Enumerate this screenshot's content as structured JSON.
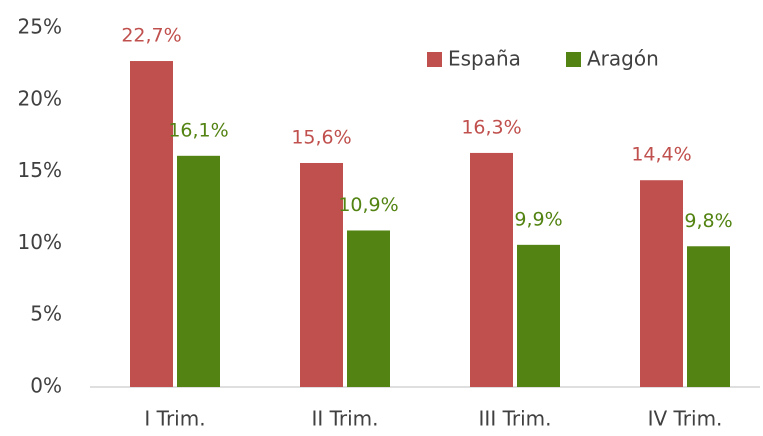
{
  "chart_data": {
    "type": "bar",
    "categories": [
      "I Trim.",
      "II Trim.",
      "III Trim.",
      "IV Trim."
    ],
    "series": [
      {
        "name": "España",
        "color": "#c0504d",
        "values": [
          22.7,
          15.6,
          16.3,
          14.4
        ],
        "value_labels": [
          "22,7%",
          "15,6%",
          "16,3%",
          "14,4%"
        ]
      },
      {
        "name": "Aragón",
        "color": "#538312",
        "values": [
          16.1,
          10.9,
          9.9,
          9.8
        ],
        "value_labels": [
          "16,1%",
          "10,9%",
          "9,9%",
          "9,8%"
        ]
      }
    ],
    "ylim": [
      0,
      25
    ],
    "yticks": [
      {
        "value": 0,
        "label": "0%"
      },
      {
        "value": 5,
        "label": "5%"
      },
      {
        "value": 10,
        "label": "10%"
      },
      {
        "value": 15,
        "label": "15%"
      },
      {
        "value": 20,
        "label": "20%"
      },
      {
        "value": 25,
        "label": "25%"
      }
    ],
    "grid": false,
    "legend": "top-right"
  }
}
